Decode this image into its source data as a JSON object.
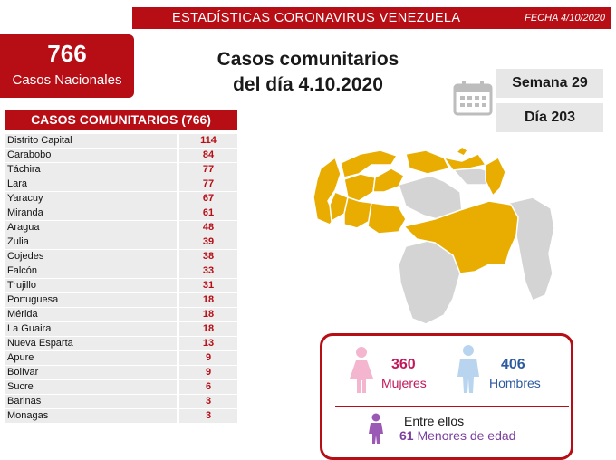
{
  "header": {
    "title": "ESTADÍSTICAS CORONAVIRUS VENEZUELA",
    "date": "FECHA 4/10/2020"
  },
  "national": {
    "count": "766",
    "label": "Casos Nacionales"
  },
  "main_title": {
    "line1": "Casos comunitarios",
    "line2": "del día 4.10.2020"
  },
  "week": "Semana 29",
  "day": "Día 203",
  "calendar_icon": "calendar-icon",
  "table": {
    "header": "CASOS COMUNITARIOS (766)",
    "rows": [
      {
        "state": "Distrito Capital",
        "cases": "114"
      },
      {
        "state": "Carabobo",
        "cases": "84"
      },
      {
        "state": "Táchira",
        "cases": "77"
      },
      {
        "state": "Lara",
        "cases": "77"
      },
      {
        "state": "Yaracuy",
        "cases": "67"
      },
      {
        "state": "Miranda",
        "cases": "61"
      },
      {
        "state": "Aragua",
        "cases": "48"
      },
      {
        "state": "Zulia",
        "cases": "39"
      },
      {
        "state": "Cojedes",
        "cases": "38"
      },
      {
        "state": "Falcón",
        "cases": "33"
      },
      {
        "state": "Trujillo",
        "cases": "31"
      },
      {
        "state": "Portuguesa",
        "cases": "18"
      },
      {
        "state": "Mérida",
        "cases": "18"
      },
      {
        "state": "La Guaira",
        "cases": "18"
      },
      {
        "state": "Nueva Esparta",
        "cases": "13"
      },
      {
        "state": "Apure",
        "cases": "9"
      },
      {
        "state": "Bolívar",
        "cases": "9"
      },
      {
        "state": "Sucre",
        "cases": "6"
      },
      {
        "state": "Barinas",
        "cases": "3"
      },
      {
        "state": "Monagas",
        "cases": "3"
      }
    ]
  },
  "map": {
    "affected_color": "#e8ad00",
    "unaffected_color": "#d4d4d4"
  },
  "gender": {
    "women_count": "360",
    "women_label": "Mujeres",
    "men_count": "406",
    "men_label": "Hombres",
    "minors_line1": "Entre ellos",
    "minors_count": "61",
    "minors_label": "Menores de edad"
  },
  "colors": {
    "brand_red": "#b70d15",
    "women": "#c2185b",
    "men": "#2c5aa0",
    "minors": "#7b3f9e"
  }
}
